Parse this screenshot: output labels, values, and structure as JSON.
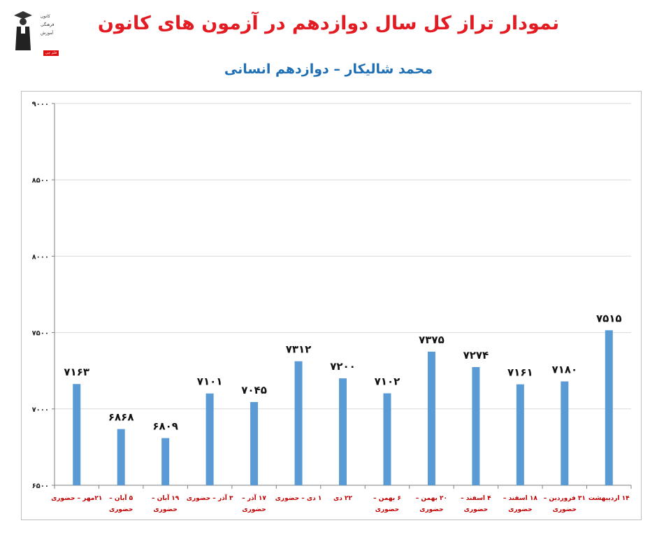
{
  "title": "نمودار تراز کل سال دوازدهم در آزمون های کانون",
  "subtitle": "محمد شالیکار – دوازدهم انسانی",
  "logo": {
    "line1": "کانون",
    "line2": "فرهنگی",
    "line3": "آموزش",
    "badge": "قلم چی"
  },
  "colors": {
    "title": "#e31b23",
    "subtitle": "#1f6fb4",
    "bar": "#5b9bd5",
    "category_label": "#c00000",
    "grid": "#d9d9d9"
  },
  "chart_data": {
    "type": "bar",
    "categories": [
      [
        "۲۱مهر – حضوری"
      ],
      [
        "۵ آبان –",
        "حضوری"
      ],
      [
        "۱۹ آبان –",
        "حضوری"
      ],
      [
        "۳ آذر – حضوری"
      ],
      [
        "۱۷ آذر –",
        "حضوری"
      ],
      [
        "۱ دی – حضوری"
      ],
      [
        "۲۲ دی"
      ],
      [
        "۶ بهمن –",
        "حضوری"
      ],
      [
        "۲۰ بهمن –",
        "حضوری"
      ],
      [
        "۴ اسفند –",
        "حضوری"
      ],
      [
        "۱۸ اسفند –",
        "حضوری"
      ],
      [
        "۳۱ فروردین –",
        "حضوری"
      ],
      [
        "۱۴ اردیبهشت"
      ]
    ],
    "values": [
      7163,
      6868,
      6809,
      7101,
      7045,
      7312,
      7200,
      7102,
      7375,
      7274,
      7161,
      7180,
      7515
    ],
    "value_labels": [
      "۷۱۶۳",
      "۶۸۶۸",
      "۶۸۰۹",
      "۷۱۰۱",
      "۷۰۴۵",
      "۷۳۱۲",
      "۷۲۰۰",
      "۷۱۰۲",
      "۷۳۷۵",
      "۷۲۷۴",
      "۷۱۶۱",
      "۷۱۸۰",
      "۷۵۱۵"
    ],
    "ylim": [
      6500,
      9000
    ],
    "yticks": [
      6500,
      7000,
      7500,
      8000,
      8500,
      9000
    ],
    "ytick_labels": [
      "۶۵۰۰",
      "۷۰۰۰",
      "۷۵۰۰",
      "۸۰۰۰",
      "۸۵۰۰",
      "۹۰۰۰"
    ],
    "grid": true,
    "legend": "none"
  }
}
